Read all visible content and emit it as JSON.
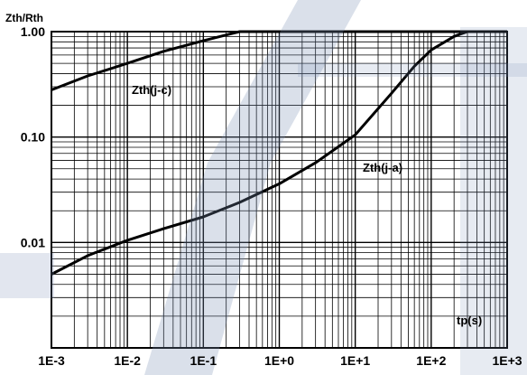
{
  "chart_data": {
    "type": "line",
    "ylabel": "Zth/Rth",
    "xlabel": "tp(s)",
    "x_scale": "log",
    "y_scale": "log",
    "xlim": [
      0.001,
      1000
    ],
    "ylim": [
      0.001,
      1.0
    ],
    "x_tick_labels": [
      "1E-3",
      "1E-2",
      "1E-1",
      "1E+0",
      "1E+1",
      "1E+2",
      "1E+3"
    ],
    "y_tick_labels": [
      "1.00",
      "0.10",
      "0.01"
    ],
    "grid": true,
    "series": [
      {
        "name": "Zth(j-c)",
        "x": [
          0.001,
          0.003,
          0.01,
          0.03,
          0.1,
          0.2,
          0.3,
          1000
        ],
        "y": [
          0.28,
          0.38,
          0.5,
          0.65,
          0.82,
          0.93,
          1.0,
          1.0
        ]
      },
      {
        "name": "Zth(j-a)",
        "x": [
          0.001,
          0.003,
          0.01,
          0.03,
          0.1,
          0.3,
          1,
          3,
          10,
          30,
          60,
          100,
          200,
          300,
          1000
        ],
        "y": [
          0.005,
          0.0075,
          0.0105,
          0.0135,
          0.0175,
          0.024,
          0.036,
          0.057,
          0.105,
          0.26,
          0.47,
          0.67,
          0.9,
          1.0,
          1.0
        ]
      }
    ],
    "annotations": [
      "Zth(j-c)",
      "Zth(j-a)"
    ],
    "colors": {
      "curve": "#000000",
      "grid": "#000000",
      "watermark": "#7a8fb5"
    }
  }
}
